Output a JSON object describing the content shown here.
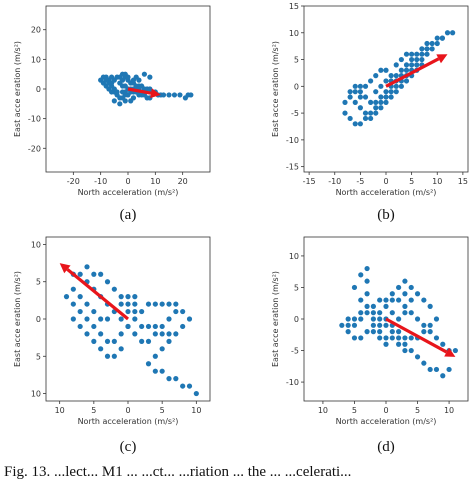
{
  "caption": "Fig. 13.    ...lect...  M1 ... ...ct... ...riation ... the ... ...celerati...",
  "chart_data": [
    {
      "type": "scatter",
      "label": "(a)",
      "xlabel": "North acceleration (m/s²)",
      "ylabel": "East acce eration (m/s²)",
      "xlim": [
        -30,
        30
      ],
      "ylim": [
        -28,
        28
      ],
      "xticks": [
        -20,
        -10,
        0,
        10,
        20
      ],
      "yticks": [
        20,
        10,
        0,
        -10,
        -20
      ],
      "xtick_labels": [
        "-20",
        "-10",
        "0",
        "10",
        "20"
      ],
      "ytick_labels": [
        "20",
        "10",
        "0",
        "-10",
        "-20"
      ],
      "grid": false,
      "point_color": "#1f77b4",
      "arrow_color": "#e8151b",
      "arrow": {
        "from": [
          0,
          0
        ],
        "to": [
          12,
          -2
        ]
      },
      "points": [
        [
          -10,
          3
        ],
        [
          -9,
          4
        ],
        [
          -8,
          4
        ],
        [
          -7,
          3
        ],
        [
          -6,
          4
        ],
        [
          -5,
          3
        ],
        [
          -4,
          4
        ],
        [
          -3,
          4
        ],
        [
          -2,
          3
        ],
        [
          -1,
          4
        ],
        [
          0,
          3
        ],
        [
          1,
          2
        ],
        [
          2,
          2
        ],
        [
          3,
          1
        ],
        [
          4,
          1
        ],
        [
          5,
          1
        ],
        [
          6,
          0
        ],
        [
          7,
          0
        ],
        [
          8,
          0
        ],
        [
          9,
          -1
        ],
        [
          10,
          -1
        ],
        [
          11,
          -2
        ],
        [
          12,
          -2
        ],
        [
          13,
          -2
        ],
        [
          15,
          -2
        ],
        [
          17,
          -2
        ],
        [
          19,
          -2
        ],
        [
          21,
          -3
        ],
        [
          22,
          -2
        ],
        [
          23,
          -2
        ],
        [
          -9,
          2
        ],
        [
          -8,
          1
        ],
        [
          -7,
          0
        ],
        [
          -6,
          -1
        ],
        [
          -5,
          -1
        ],
        [
          -4,
          -2
        ],
        [
          -3,
          -3
        ],
        [
          -2,
          -3
        ],
        [
          -1,
          -2
        ],
        [
          0,
          -2
        ],
        [
          1,
          -1
        ],
        [
          2,
          -1
        ],
        [
          3,
          -1
        ],
        [
          4,
          -2
        ],
        [
          5,
          -2
        ],
        [
          6,
          -2
        ],
        [
          7,
          -3
        ],
        [
          8,
          -3
        ],
        [
          -3,
          2
        ],
        [
          -2,
          1
        ],
        [
          -1,
          1
        ],
        [
          0,
          0
        ],
        [
          1,
          0
        ],
        [
          2,
          0
        ],
        [
          3,
          0
        ],
        [
          -4,
          -1
        ],
        [
          -5,
          0
        ],
        [
          -6,
          1
        ],
        [
          -2,
          5
        ],
        [
          -1,
          5
        ],
        [
          0,
          4
        ],
        [
          2,
          3
        ],
        [
          3,
          4
        ],
        [
          4,
          3
        ],
        [
          6,
          5
        ],
        [
          8,
          4
        ],
        [
          -5,
          -4
        ],
        [
          -3,
          -5
        ],
        [
          -1,
          -4
        ],
        [
          1,
          -4
        ],
        [
          2,
          -3
        ],
        [
          -2,
          -1
        ],
        [
          -1,
          -1
        ],
        [
          4,
          0
        ],
        [
          5,
          -1
        ],
        [
          6,
          -1
        ],
        [
          -7,
          2
        ],
        [
          -6,
          2
        ],
        [
          -8,
          3
        ]
      ]
    },
    {
      "type": "scatter",
      "label": "(b)",
      "xlabel": "North acceleration (m/s²)",
      "ylabel": "East acce eration (m/s²)",
      "xlim": [
        -16,
        16
      ],
      "ylim": [
        -16,
        15
      ],
      "xticks": [
        -15,
        -10,
        -5,
        0,
        5,
        10,
        15
      ],
      "yticks": [
        15,
        10,
        5,
        0,
        -5,
        -10,
        -15
      ],
      "xtick_labels": [
        "-15",
        "-10",
        "-5",
        "0",
        "5",
        "10",
        "15"
      ],
      "ytick_labels": [
        "15",
        "10",
        "5",
        "0",
        "-5",
        "-10",
        "-15"
      ],
      "grid": false,
      "point_color": "#1f77b4",
      "arrow_color": "#e8151b",
      "arrow": {
        "from": [
          0,
          0
        ],
        "to": [
          12,
          6
        ]
      },
      "points": [
        [
          -8,
          -5
        ],
        [
          -7,
          -6
        ],
        [
          -6,
          -7
        ],
        [
          -5,
          -7
        ],
        [
          -4,
          -6
        ],
        [
          -3,
          -5
        ],
        [
          -2,
          -4
        ],
        [
          -1,
          -3
        ],
        [
          0,
          -2
        ],
        [
          1,
          -1
        ],
        [
          2,
          0
        ],
        [
          3,
          1
        ],
        [
          4,
          2
        ],
        [
          5,
          3
        ],
        [
          6,
          4
        ],
        [
          7,
          5
        ],
        [
          8,
          6
        ],
        [
          9,
          7
        ],
        [
          10,
          8
        ],
        [
          11,
          9
        ],
        [
          12,
          10
        ],
        [
          13,
          10
        ],
        [
          -8,
          -3
        ],
        [
          -7,
          -2
        ],
        [
          -6,
          -1
        ],
        [
          -5,
          -1
        ],
        [
          -4,
          -2
        ],
        [
          -3,
          -3
        ],
        [
          -2,
          -3
        ],
        [
          -1,
          -2
        ],
        [
          0,
          -1
        ],
        [
          1,
          0
        ],
        [
          2,
          1
        ],
        [
          3,
          2
        ],
        [
          4,
          3
        ],
        [
          5,
          4
        ],
        [
          6,
          5
        ],
        [
          7,
          6
        ],
        [
          8,
          7
        ],
        [
          9,
          8
        ],
        [
          10,
          9
        ],
        [
          11,
          9
        ],
        [
          -6,
          -3
        ],
        [
          -5,
          -4
        ],
        [
          -4,
          -5
        ],
        [
          -3,
          -6
        ],
        [
          -2,
          -5
        ],
        [
          -1,
          -4
        ],
        [
          0,
          -3
        ],
        [
          1,
          -2
        ],
        [
          2,
          -1
        ],
        [
          3,
          0
        ],
        [
          4,
          1
        ],
        [
          5,
          2
        ],
        [
          6,
          3
        ],
        [
          7,
          4
        ],
        [
          -4,
          0
        ],
        [
          -3,
          1
        ],
        [
          -2,
          2
        ],
        [
          -1,
          3
        ],
        [
          0,
          3
        ],
        [
          1,
          2
        ],
        [
          2,
          2
        ],
        [
          3,
          3
        ],
        [
          4,
          4
        ],
        [
          5,
          5
        ],
        [
          6,
          6
        ],
        [
          7,
          7
        ],
        [
          8,
          8
        ],
        [
          -2,
          -1
        ],
        [
          -1,
          0
        ],
        [
          0,
          1
        ],
        [
          1,
          1
        ],
        [
          -5,
          0
        ],
        [
          -6,
          0
        ],
        [
          -7,
          -1
        ],
        [
          -5,
          -2
        ],
        [
          2,
          4
        ],
        [
          3,
          5
        ],
        [
          4,
          6
        ],
        [
          5,
          6
        ]
      ]
    },
    {
      "type": "scatter",
      "label": "(c)",
      "xlabel": "North acceleration (m/s²)",
      "ylabel": "East acce eration (m/s²)",
      "xlim": [
        -12,
        12
      ],
      "ylim": [
        -11,
        11
      ],
      "xticks": [
        -10,
        -5,
        0,
        5,
        10
      ],
      "yticks": [
        10,
        5,
        0,
        -5,
        -10
      ],
      "xtick_labels": [
        "10",
        "5",
        "0",
        "5",
        "10"
      ],
      "ytick_labels": [
        "10",
        "5",
        "0",
        "5",
        "10"
      ],
      "grid": false,
      "point_color": "#1f77b4",
      "arrow_color": "#e8151b",
      "arrow": {
        "from": [
          0,
          0
        ],
        "to": [
          -10,
          7.5
        ]
      },
      "points": [
        [
          -8,
          6
        ],
        [
          -7,
          6
        ],
        [
          -6,
          5
        ],
        [
          -5,
          4
        ],
        [
          -4,
          3
        ],
        [
          -3,
          2
        ],
        [
          -2,
          1
        ],
        [
          -1,
          0
        ],
        [
          0,
          -1
        ],
        [
          1,
          -2
        ],
        [
          2,
          -3
        ],
        [
          3,
          -3
        ],
        [
          4,
          -2
        ],
        [
          5,
          -1
        ],
        [
          6,
          0
        ],
        [
          7,
          1
        ],
        [
          8,
          1
        ],
        [
          9,
          0
        ],
        [
          8,
          -1
        ],
        [
          7,
          -2
        ],
        [
          6,
          -3
        ],
        [
          5,
          -4
        ],
        [
          4,
          -5
        ],
        [
          3,
          -6
        ],
        [
          4,
          -7
        ],
        [
          5,
          -7
        ],
        [
          6,
          -8
        ],
        [
          7,
          -8
        ],
        [
          8,
          -9
        ],
        [
          9,
          -9
        ],
        [
          10,
          -10
        ],
        [
          -9,
          3
        ],
        [
          -8,
          2
        ],
        [
          -7,
          1
        ],
        [
          -6,
          0
        ],
        [
          -5,
          -1
        ],
        [
          -4,
          -2
        ],
        [
          -3,
          -3
        ],
        [
          -2,
          -3
        ],
        [
          -1,
          -2
        ],
        [
          0,
          -1
        ],
        [
          1,
          0
        ],
        [
          2,
          1
        ],
        [
          3,
          2
        ],
        [
          4,
          2
        ],
        [
          5,
          2
        ],
        [
          6,
          2
        ],
        [
          7,
          2
        ],
        [
          -8,
          0
        ],
        [
          -7,
          -1
        ],
        [
          -6,
          -2
        ],
        [
          -5,
          -3
        ],
        [
          -4,
          -4
        ],
        [
          -3,
          -5
        ],
        [
          -2,
          -5
        ],
        [
          -1,
          -4
        ],
        [
          0,
          3
        ],
        [
          0,
          2
        ],
        [
          0,
          1
        ],
        [
          -1,
          3
        ],
        [
          -1,
          2
        ],
        [
          1,
          3
        ],
        [
          1,
          2
        ],
        [
          1,
          1
        ],
        [
          -2,
          4
        ],
        [
          -3,
          5
        ],
        [
          -4,
          6
        ],
        [
          -5,
          6
        ],
        [
          -6,
          7
        ],
        [
          2,
          -1
        ],
        [
          3,
          -1
        ],
        [
          4,
          -1
        ],
        [
          5,
          -2
        ],
        [
          6,
          -2
        ],
        [
          -3,
          0
        ],
        [
          -4,
          0
        ],
        [
          -5,
          1
        ],
        [
          -6,
          2
        ],
        [
          -7,
          3
        ],
        [
          -8,
          4
        ]
      ]
    },
    {
      "type": "scatter",
      "label": "(d)",
      "xlabel": "North acceleration (m/s²)",
      "ylabel": "East acce eration (m/s²)",
      "xlim": [
        -13,
        13
      ],
      "ylim": [
        -13,
        13
      ],
      "xticks": [
        -10,
        -5,
        0,
        5,
        10
      ],
      "yticks": [
        10,
        5,
        0,
        -5,
        -10
      ],
      "xtick_labels": [
        "10",
        "5",
        "0",
        "5",
        "10"
      ],
      "ytick_labels": [
        "10",
        "5",
        "0",
        "-5",
        "-10"
      ],
      "grid": false,
      "point_color": "#1f77b4",
      "arrow_color": "#e8151b",
      "arrow": {
        "from": [
          0,
          0
        ],
        "to": [
          11,
          -6
        ]
      },
      "points": [
        [
          -6,
          -1
        ],
        [
          -5,
          -1
        ],
        [
          -4,
          0
        ],
        [
          -3,
          1
        ],
        [
          -2,
          2
        ],
        [
          -1,
          3
        ],
        [
          0,
          3
        ],
        [
          1,
          3
        ],
        [
          2,
          3
        ],
        [
          3,
          2
        ],
        [
          4,
          1
        ],
        [
          5,
          0
        ],
        [
          6,
          -1
        ],
        [
          7,
          -2
        ],
        [
          8,
          -3
        ],
        [
          9,
          -4
        ],
        [
          10,
          -5
        ],
        [
          11,
          -5
        ],
        [
          -5,
          0
        ],
        [
          -4,
          1
        ],
        [
          -3,
          2
        ],
        [
          -3,
          4
        ],
        [
          -3,
          6
        ],
        [
          -3,
          8
        ],
        [
          -4,
          7
        ],
        [
          -5,
          5
        ],
        [
          -4,
          3
        ],
        [
          -2,
          1
        ],
        [
          -1,
          0
        ],
        [
          0,
          -1
        ],
        [
          1,
          -2
        ],
        [
          2,
          -3
        ],
        [
          3,
          -4
        ],
        [
          4,
          -5
        ],
        [
          5,
          -6
        ],
        [
          6,
          -7
        ],
        [
          7,
          -8
        ],
        [
          8,
          -8
        ],
        [
          9,
          -9
        ],
        [
          10,
          -8
        ],
        [
          -6,
          0
        ],
        [
          -7,
          -1
        ],
        [
          -6,
          -2
        ],
        [
          -5,
          -3
        ],
        [
          -4,
          -3
        ],
        [
          -3,
          -2
        ],
        [
          -2,
          -1
        ],
        [
          -1,
          -1
        ],
        [
          0,
          0
        ],
        [
          1,
          -1
        ],
        [
          2,
          -2
        ],
        [
          3,
          -3
        ],
        [
          4,
          -3
        ],
        [
          5,
          -3
        ],
        [
          6,
          -2
        ],
        [
          7,
          -1
        ],
        [
          8,
          0
        ],
        [
          1,
          4
        ],
        [
          2,
          5
        ],
        [
          3,
          4
        ],
        [
          4,
          3
        ],
        [
          3,
          1
        ],
        [
          2,
          0
        ],
        [
          1,
          1
        ],
        [
          0,
          2
        ],
        [
          -1,
          1
        ],
        [
          -2,
          0
        ],
        [
          -1,
          -2
        ],
        [
          0,
          -3
        ],
        [
          1,
          -3
        ],
        [
          2,
          -4
        ],
        [
          3,
          -5
        ],
        [
          0,
          -4
        ],
        [
          -1,
          -3
        ],
        [
          -2,
          -2
        ],
        [
          5,
          4
        ],
        [
          4,
          5
        ],
        [
          3,
          6
        ],
        [
          6,
          3
        ],
        [
          7,
          2
        ]
      ]
    }
  ]
}
